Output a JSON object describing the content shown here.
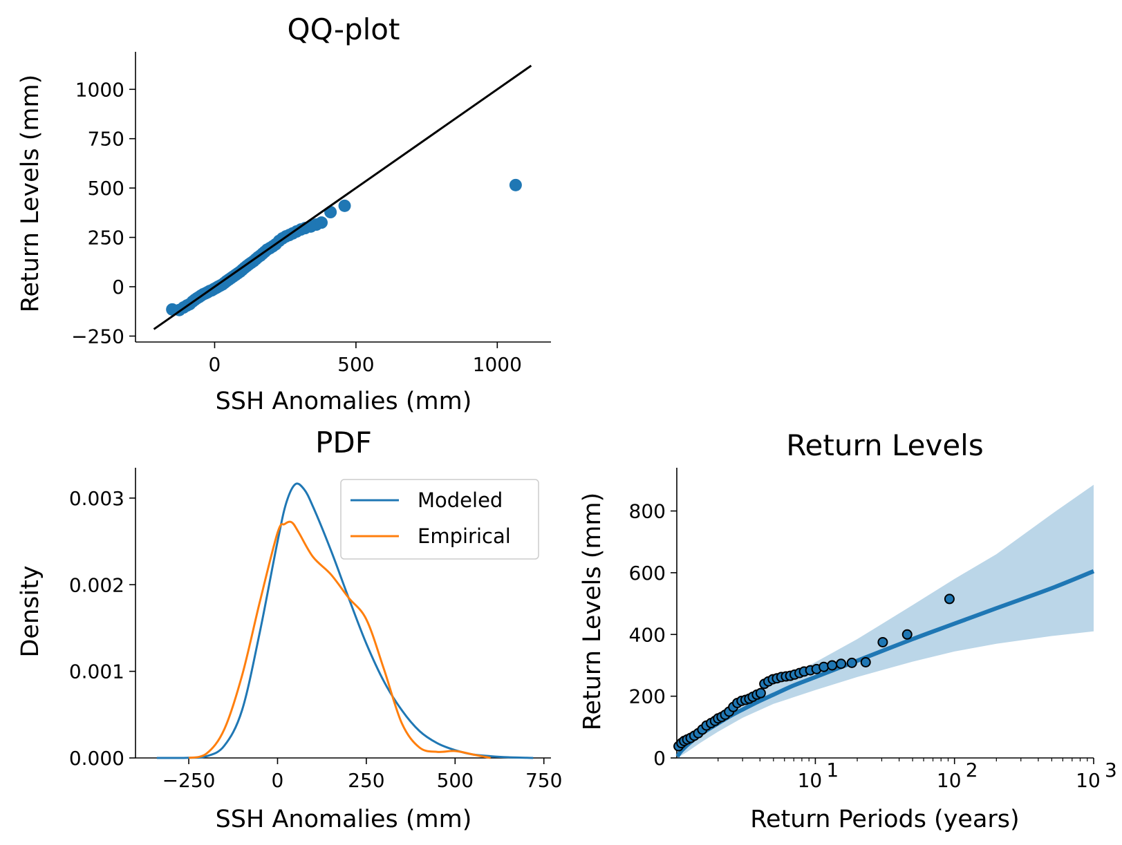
{
  "colors": {
    "blue": "#1f77b4",
    "orange": "#ff7f0e",
    "black": "#000000",
    "band": "#1f77b4"
  },
  "chart_data": [
    {
      "id": "qq",
      "type": "scatter",
      "title": "QQ-plot",
      "xlabel": "SSH Anomalies (mm)",
      "ylabel": "Return Levels (mm)",
      "xlim": [
        -280,
        1190
      ],
      "ylim": [
        -280,
        1190
      ],
      "xticks": [
        0,
        500,
        1000
      ],
      "xtick_labels": [
        "0",
        "500",
        "1000"
      ],
      "yticks": [
        -250,
        0,
        250,
        500,
        750,
        1000
      ],
      "ytick_labels": [
        "−250",
        "0",
        "250",
        "500",
        "750",
        "1000"
      ],
      "grid": false,
      "reference_line": {
        "x": [
          -215,
          1120
        ],
        "y": [
          -215,
          1120
        ]
      },
      "x": [
        -150,
        -125,
        -110,
        -98,
        -88,
        -78,
        -70,
        -62,
        -55,
        -48,
        -40,
        -32,
        -25,
        -18,
        -10,
        -3,
        5,
        12,
        20,
        28,
        35,
        42,
        50,
        58,
        66,
        74,
        82,
        90,
        98,
        106,
        114,
        122,
        130,
        138,
        146,
        154,
        162,
        170,
        178,
        186,
        196,
        206,
        216,
        228,
        240,
        252,
        264,
        276,
        290,
        305,
        320,
        340,
        360,
        378,
        410,
        460,
        1065
      ],
      "y": [
        -115,
        -118,
        -105,
        -95,
        -88,
        -75,
        -66,
        -58,
        -52,
        -45,
        -38,
        -33,
        -28,
        -22,
        -18,
        -12,
        -6,
        0,
        6,
        12,
        20,
        28,
        36,
        44,
        52,
        60,
        68,
        76,
        86,
        96,
        105,
        114,
        122,
        130,
        140,
        150,
        158,
        168,
        178,
        188,
        196,
        205,
        215,
        232,
        245,
        255,
        262,
        270,
        280,
        290,
        297,
        305,
        315,
        325,
        378,
        410,
        515
      ]
    },
    {
      "id": "pdf",
      "type": "line",
      "title": "PDF",
      "xlabel": "SSH Anomalies (mm)",
      "ylabel": "Density",
      "xlim": [
        -400,
        770
      ],
      "ylim": [
        0,
        0.00335
      ],
      "xticks": [
        -250,
        0,
        250,
        500,
        750
      ],
      "xtick_labels": [
        "−250",
        "0",
        "250",
        "500",
        "750"
      ],
      "yticks": [
        0,
        0.001,
        0.002,
        0.003
      ],
      "ytick_labels": [
        "0.000",
        "0.001",
        "0.002",
        "0.003"
      ],
      "legend_position": "upper right",
      "grid": false,
      "series": [
        {
          "name": "Modeled",
          "color_key": "blue",
          "x": [
            -340,
            -250,
            -200,
            -150,
            -100,
            -50,
            0,
            25,
            50,
            75,
            100,
            150,
            200,
            250,
            300,
            350,
            400,
            450,
            500,
            550,
            600,
            650,
            720
          ],
          "y": [
            0,
            2e-06,
            2e-05,
            0.00014,
            0.00055,
            0.00145,
            0.0025,
            0.00295,
            0.00316,
            0.0031,
            0.0029,
            0.0024,
            0.00185,
            0.00132,
            0.00088,
            0.00055,
            0.00031,
            0.00017,
            9e-05,
            4e-05,
            2e-05,
            8e-06,
            0
          ]
        },
        {
          "name": "Empirical",
          "color_key": "orange",
          "x": [
            -250,
            -200,
            -150,
            -100,
            -50,
            0,
            20,
            40,
            60,
            100,
            150,
            200,
            250,
            300,
            350,
            400,
            450,
            500,
            550,
            600
          ],
          "y": [
            0,
            5e-05,
            0.00033,
            0.00095,
            0.0018,
            0.0026,
            0.0027,
            0.00272,
            0.0026,
            0.00232,
            0.00212,
            0.00185,
            0.0016,
            0.00102,
            0.0004,
            0.00012,
            7e-05,
            8e-05,
            4e-05,
            0
          ]
        }
      ]
    },
    {
      "id": "rl",
      "type": "scatter",
      "title": "Return Levels",
      "xlabel": "Return Periods (years)",
      "ylabel": "Return Levels (mm)",
      "xscale": "log",
      "xlim": [
        1.01,
        1000
      ],
      "ylim": [
        0,
        940
      ],
      "xticks": [
        10,
        100,
        1000
      ],
      "xtick_labels": [
        "10",
        "10",
        "10"
      ],
      "xtick_exponents": [
        "1",
        "2",
        "3"
      ],
      "yticks": [
        0,
        200,
        400,
        600,
        800
      ],
      "ytick_labels": [
        "0",
        "200",
        "400",
        "600",
        "800"
      ],
      "grid": false,
      "model_curve": {
        "color_key": "blue",
        "x": [
          1.02,
          1.1,
          1.3,
          1.6,
          2,
          2.5,
          3,
          4,
          5,
          7,
          10,
          20,
          50,
          100,
          200,
          500,
          1000
        ],
        "y": [
          5,
          25,
          55,
          85,
          112,
          138,
          157,
          185,
          205,
          235,
          262,
          315,
          385,
          435,
          485,
          550,
          605
        ]
      },
      "confidence_band": {
        "color_key": "band",
        "x": [
          1.02,
          1.2,
          1.5,
          2,
          3,
          5,
          10,
          20,
          50,
          100,
          200,
          500,
          1000
        ],
        "lower": [
          0,
          20,
          50,
          85,
          130,
          175,
          220,
          262,
          312,
          345,
          370,
          395,
          410
        ],
        "upper": [
          15,
          60,
          95,
          140,
          185,
          240,
          310,
          385,
          495,
          580,
          660,
          790,
          885
        ]
      },
      "x": [
        1.04,
        1.09,
        1.14,
        1.2,
        1.27,
        1.35,
        1.44,
        1.54,
        1.65,
        1.78,
        1.9,
        2.0,
        2.12,
        2.25,
        2.4,
        2.57,
        2.75,
        2.95,
        3.15,
        3.35,
        3.55,
        3.8,
        4.05,
        4.3,
        4.6,
        4.95,
        5.3,
        5.7,
        6.15,
        6.6,
        7.1,
        7.7,
        8.3,
        9.2,
        10.2,
        11.5,
        13.2,
        15.3,
        18.3,
        23,
        30.5,
        45.7,
        92
      ],
      "y": [
        38,
        48,
        55,
        60,
        65,
        72,
        80,
        92,
        105,
        113,
        120,
        128,
        133,
        140,
        150,
        165,
        178,
        185,
        188,
        192,
        198,
        205,
        210,
        240,
        248,
        255,
        258,
        262,
        264,
        266,
        270,
        275,
        280,
        284,
        288,
        295,
        300,
        305,
        308,
        310,
        375,
        400,
        515
      ]
    }
  ]
}
